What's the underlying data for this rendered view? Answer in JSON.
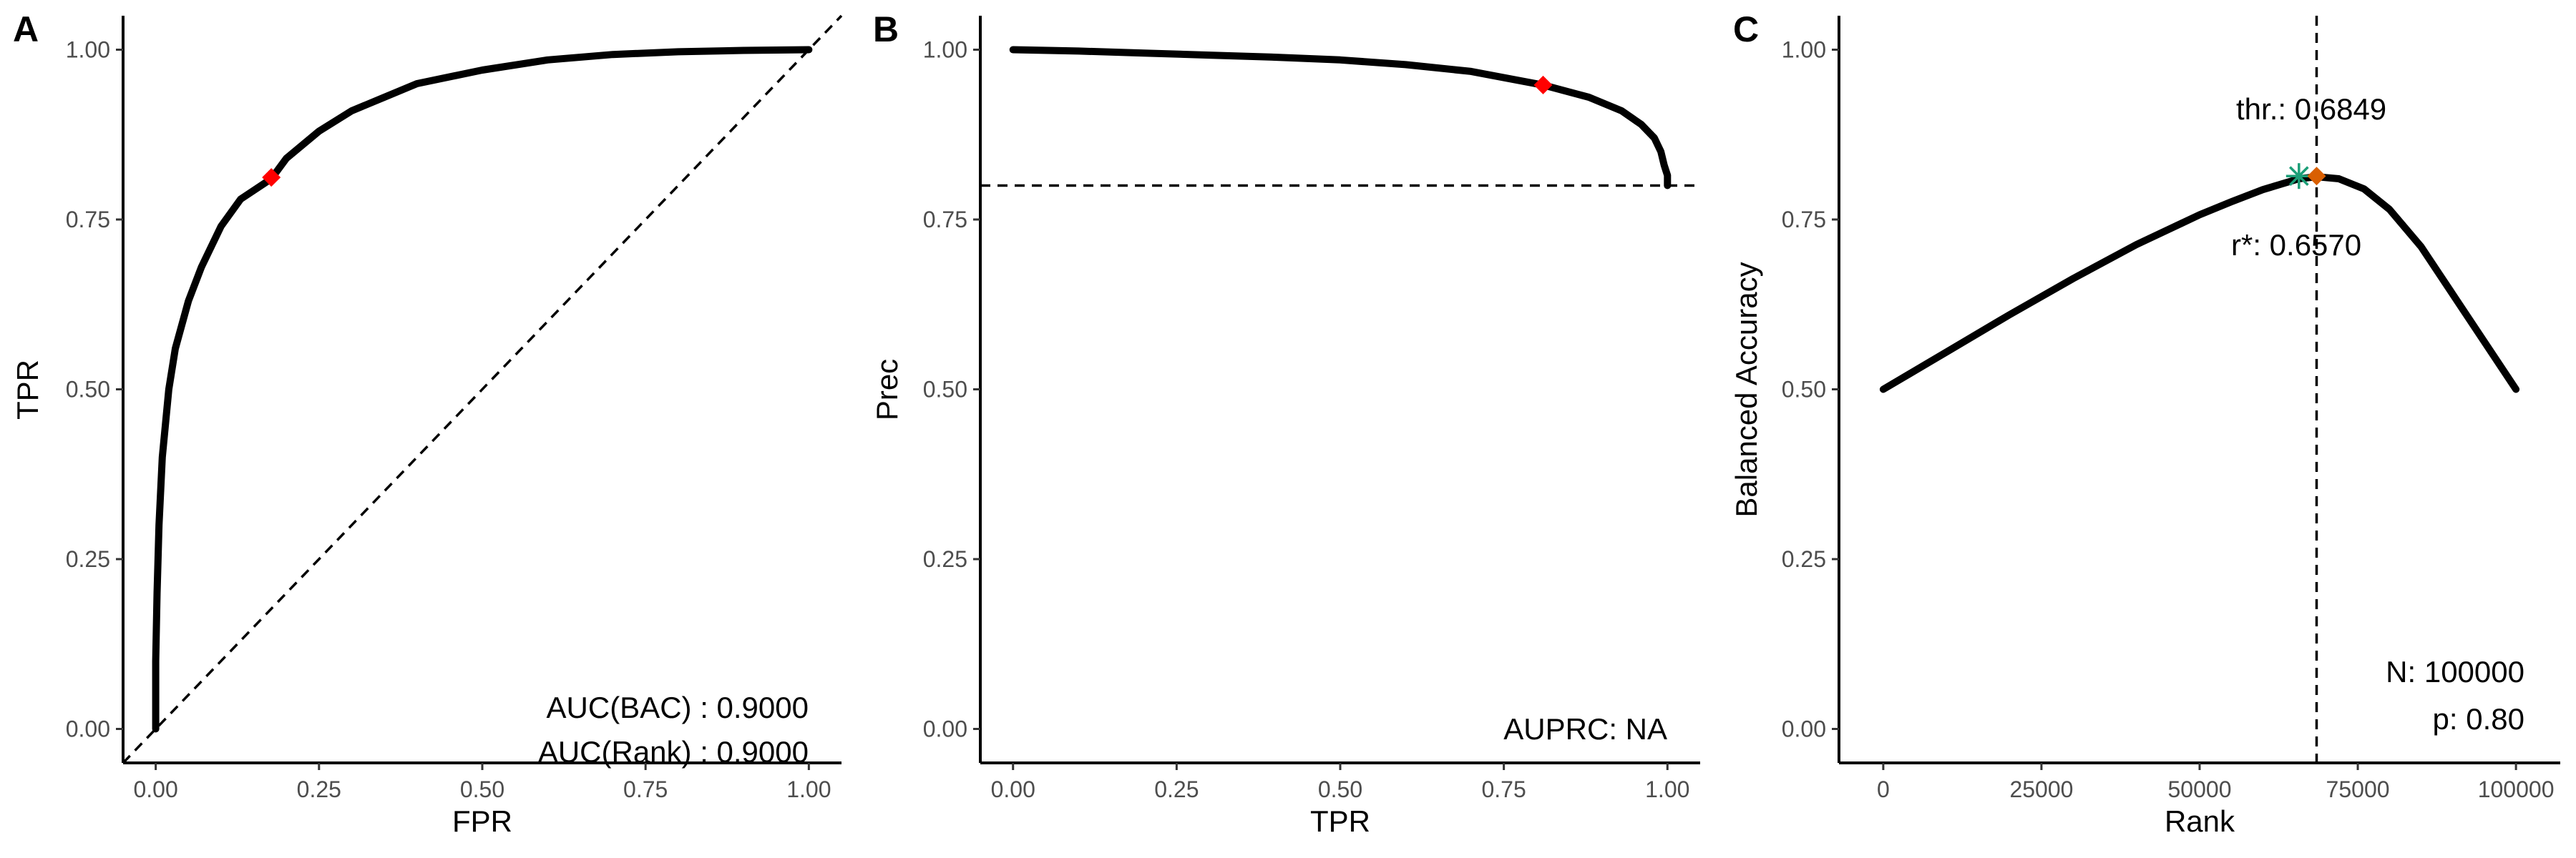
{
  "panels": {
    "A": {
      "letter": "A"
    },
    "B": {
      "letter": "B"
    },
    "C": {
      "letter": "C"
    }
  },
  "colors": {
    "curve": "#000000",
    "marker_red": "#ff0000",
    "marker_orange": "#d95f02",
    "marker_star": "#1b9e77",
    "tick_text": "#4d4d4d"
  },
  "chart_data": [
    {
      "type": "line",
      "panel": "A",
      "xlabel": "FPR",
      "ylabel": "TPR",
      "xlim": [
        -0.05,
        1.05
      ],
      "ylim": [
        -0.05,
        1.05
      ],
      "x_ticks": [
        "0.00",
        "0.25",
        "0.50",
        "0.75",
        "1.00"
      ],
      "y_ticks": [
        "0.00",
        "0.25",
        "0.50",
        "0.75",
        "1.00"
      ],
      "grid": false,
      "series": [
        {
          "x": [
            0.0,
            0.0,
            0.002,
            0.005,
            0.01,
            0.02,
            0.03,
            0.05,
            0.07,
            0.1,
            0.13,
            0.177,
            0.2,
            0.25,
            0.3,
            0.35,
            0.4,
            0.5,
            0.6,
            0.7,
            0.8,
            0.9,
            1.0
          ],
          "y": [
            0.0,
            0.1,
            0.2,
            0.3,
            0.4,
            0.5,
            0.56,
            0.63,
            0.68,
            0.74,
            0.78,
            0.81,
            0.84,
            0.88,
            0.91,
            0.93,
            0.95,
            0.97,
            0.985,
            0.993,
            0.997,
            0.999,
            1.0
          ]
        }
      ],
      "reference_line": {
        "x": [
          0,
          1
        ],
        "y": [
          0,
          1
        ],
        "style": "dashed"
      },
      "highlight_point": {
        "x": 0.177,
        "y": 0.812,
        "color": "#ff0000"
      },
      "annotations": [
        "AUC(BAC) : 0.9000",
        "AUC(Rank) : 0.9000"
      ]
    },
    {
      "type": "line",
      "panel": "B",
      "xlabel": "TPR",
      "ylabel": "Prec",
      "xlim": [
        -0.05,
        1.05
      ],
      "ylim": [
        -0.05,
        1.05
      ],
      "x_ticks": [
        "0.00",
        "0.25",
        "0.50",
        "0.75",
        "1.00"
      ],
      "y_ticks": [
        "0.00",
        "0.25",
        "0.50",
        "0.75",
        "1.00"
      ],
      "grid": false,
      "series": [
        {
          "x": [
            0.0,
            0.1,
            0.2,
            0.3,
            0.4,
            0.5,
            0.6,
            0.7,
            0.81,
            0.88,
            0.93,
            0.96,
            0.98,
            0.99,
            0.995,
            1.0,
            1.0
          ],
          "y": [
            1.0,
            0.998,
            0.995,
            0.992,
            0.989,
            0.985,
            0.978,
            0.968,
            0.948,
            0.93,
            0.91,
            0.89,
            0.87,
            0.85,
            0.83,
            0.815,
            0.8
          ]
        }
      ],
      "reference_line": {
        "y": 0.8,
        "style": "dashed"
      },
      "highlight_point": {
        "x": 0.81,
        "y": 0.948,
        "color": "#ff0000"
      },
      "annotations": [
        "AUPRC: NA"
      ]
    },
    {
      "type": "line",
      "panel": "C",
      "xlabel": "Rank",
      "ylabel": "Balanced Accuracy",
      "xlim": [
        -7000,
        107000
      ],
      "ylim": [
        -0.05,
        1.05
      ],
      "x_ticks": [
        "0",
        "25000",
        "50000",
        "75000",
        "100000"
      ],
      "y_ticks": [
        "0.00",
        "0.25",
        "0.50",
        "0.75",
        "1.00"
      ],
      "grid": false,
      "series": [
        {
          "x": [
            0,
            10000,
            20000,
            30000,
            40000,
            50000,
            55000,
            60000,
            65700,
            68490,
            72000,
            76000,
            80000,
            85000,
            90000,
            95000,
            100000
          ],
          "y": [
            0.5,
            0.555,
            0.61,
            0.663,
            0.713,
            0.757,
            0.776,
            0.794,
            0.81,
            0.813,
            0.81,
            0.795,
            0.765,
            0.71,
            0.64,
            0.57,
            0.5
          ]
        }
      ],
      "reference_line": {
        "x": 68490,
        "style": "dashed"
      },
      "star_point": {
        "x": 65700,
        "y": 0.814,
        "color": "#1b9e77"
      },
      "highlight_point": {
        "x": 68490,
        "y": 0.814,
        "color": "#d95f02"
      },
      "annotations": [
        "thr.: 0.6849",
        "r*: 0.6570",
        "N: 100000",
        "p: 0.80"
      ]
    }
  ]
}
